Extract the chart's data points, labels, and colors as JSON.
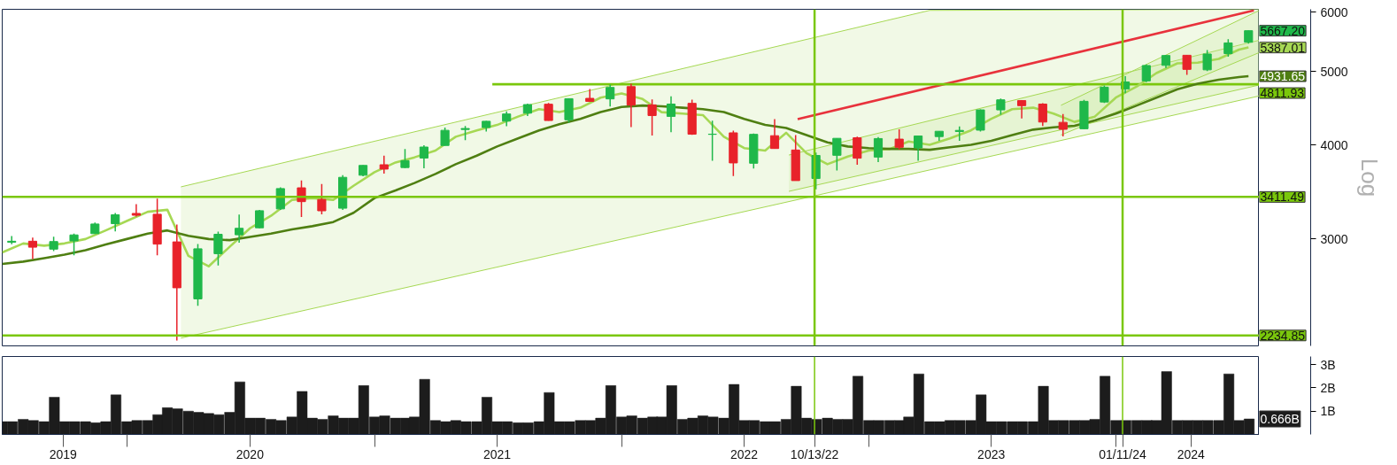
{
  "chart_data": [
    {
      "type": "candlestick",
      "ylabel": "Log",
      "log": true,
      "tick_labels": "y",
      "xlim": [
        "2019-07-01",
        "2024-07-31"
      ],
      "ylim": [
        2165,
        6050
      ],
      "yticks": [
        3000,
        4000,
        5000,
        6000
      ],
      "x": [
        "2019-07-15",
        "2019-08-15",
        "2019-09-15",
        "2019-10-15",
        "2019-11-15",
        "2019-12-15",
        "2020-01-15",
        "2020-02-15",
        "2020-03-15",
        "2020-04-15",
        "2020-05-15",
        "2020-06-15",
        "2020-07-15",
        "2020-08-15",
        "2020-09-15",
        "2020-10-15",
        "2020-11-15",
        "2020-12-15",
        "2021-01-15",
        "2021-02-15",
        "2021-03-15",
        "2021-04-15",
        "2021-05-15",
        "2021-06-15",
        "2021-07-15",
        "2021-08-15",
        "2021-09-15",
        "2021-10-15",
        "2021-11-15",
        "2021-12-15",
        "2022-01-15",
        "2022-02-15",
        "2022-03-15",
        "2022-04-15",
        "2022-05-15",
        "2022-06-15",
        "2022-07-15",
        "2022-08-15",
        "2022-09-15",
        "2022-10-15",
        "2022-11-15",
        "2022-12-15",
        "2023-01-15",
        "2023-02-15",
        "2023-03-15",
        "2023-04-15",
        "2023-05-15",
        "2023-06-15",
        "2023-07-15",
        "2023-08-15",
        "2023-09-15",
        "2023-10-15",
        "2023-11-15",
        "2023-12-15",
        "2024-01-15",
        "2024-02-15",
        "2024-03-15",
        "2024-04-15",
        "2024-05-15",
        "2024-06-15",
        "2024-07-15"
      ],
      "ohlc": [
        [
          2971,
          3028,
          2952,
          2980
        ],
        [
          2980,
          3014,
          2822,
          2926
        ],
        [
          2909,
          3022,
          2892,
          2977
        ],
        [
          2983,
          3050,
          2855,
          3038
        ],
        [
          3050,
          3155,
          3050,
          3141
        ],
        [
          3144,
          3248,
          3070,
          3231
        ],
        [
          3244,
          3338,
          3214,
          3226
        ],
        [
          3236,
          3394,
          2855,
          2954
        ],
        [
          2974,
          3136,
          2200,
          2585
        ],
        [
          2499,
          2955,
          2447,
          2912
        ],
        [
          2869,
          3068,
          2767,
          3044
        ],
        [
          3039,
          3233,
          2966,
          3100
        ],
        [
          3105,
          3280,
          3101,
          3271
        ],
        [
          3289,
          3514,
          3280,
          3500
        ],
        [
          3508,
          3588,
          3209,
          3363
        ],
        [
          3385,
          3550,
          3234,
          3270
        ],
        [
          3296,
          3646,
          3280,
          3622
        ],
        [
          3645,
          3760,
          3633,
          3756
        ],
        [
          3764,
          3870,
          3663,
          3714
        ],
        [
          3732,
          3950,
          3725,
          3811
        ],
        [
          3842,
          3994,
          3723,
          3973
        ],
        [
          3992,
          4218,
          3992,
          4181
        ],
        [
          4192,
          4238,
          4056,
          4204
        ],
        [
          4217,
          4302,
          4165,
          4298
        ],
        [
          4300,
          4429,
          4233,
          4395
        ],
        [
          4406,
          4537,
          4367,
          4523
        ],
        [
          4528,
          4546,
          4306,
          4308
        ],
        [
          4317,
          4608,
          4279,
          4605
        ],
        [
          4610,
          4744,
          4560,
          4567
        ],
        [
          4602,
          4808,
          4495,
          4766
        ],
        [
          4778,
          4819,
          4223,
          4516
        ],
        [
          4519,
          4596,
          4115,
          4374
        ],
        [
          4363,
          4637,
          4157,
          4530
        ],
        [
          4540,
          4593,
          4124,
          4132
        ],
        [
          4130,
          4307,
          3811,
          4132
        ],
        [
          4149,
          4178,
          3637,
          3785
        ],
        [
          3781,
          4140,
          3721,
          4130
        ],
        [
          4113,
          4325,
          3955,
          3955
        ],
        [
          3937,
          4120,
          3585,
          3586
        ],
        [
          3609,
          3906,
          3492,
          3872
        ],
        [
          3874,
          4080,
          3699,
          4080
        ],
        [
          4087,
          4101,
          3764,
          3840
        ],
        [
          3853,
          4095,
          3795,
          4077
        ],
        [
          4070,
          4195,
          3944,
          3970
        ],
        [
          3963,
          4111,
          3809,
          4109
        ],
        [
          4102,
          4170,
          4049,
          4169
        ],
        [
          4166,
          4231,
          4048,
          4180
        ],
        [
          4183,
          4458,
          4166,
          4450
        ],
        [
          4450,
          4608,
          4385,
          4589
        ],
        [
          4578,
          4584,
          4335,
          4508
        ],
        [
          4530,
          4541,
          4238,
          4288
        ],
        [
          4284,
          4394,
          4104,
          4194
        ],
        [
          4201,
          4587,
          4197,
          4568
        ],
        [
          4559,
          4794,
          4546,
          4770
        ],
        [
          4745,
          4932,
          4683,
          4846
        ],
        [
          4862,
          5111,
          4845,
          5096
        ],
        [
          5098,
          5265,
          5057,
          5254
        ],
        [
          5258,
          5264,
          4954,
          5036
        ],
        [
          5029,
          5342,
          5011,
          5278
        ],
        [
          5284,
          5523,
          5234,
          5460
        ],
        [
          5471,
          5670,
          5448,
          5667.2
        ]
      ],
      "colors": [
        "#1fb84a",
        "#e8222a",
        "#1fb84a",
        "#1fb84a",
        "#1fb84a",
        "#1fb84a",
        "#e8222a",
        "#e8222a",
        "#e8222a",
        "#1fb84a",
        "#1fb84a",
        "#1fb84a",
        "#1fb84a",
        "#1fb84a",
        "#e8222a",
        "#e8222a",
        "#1fb84a",
        "#1fb84a",
        "#e8222a",
        "#1fb84a",
        "#1fb84a",
        "#1fb84a",
        "#1fb84a",
        "#1fb84a",
        "#1fb84a",
        "#1fb84a",
        "#e8222a",
        "#1fb84a",
        "#e8222a",
        "#1fb84a",
        "#e8222a",
        "#e8222a",
        "#1fb84a",
        "#e8222a",
        "#1fb84a",
        "#e8222a",
        "#1fb84a",
        "#e8222a",
        "#e8222a",
        "#1fb84a",
        "#1fb84a",
        "#e8222a",
        "#1fb84a",
        "#e8222a",
        "#1fb84a",
        "#1fb84a",
        "#1fb84a",
        "#1fb84a",
        "#1fb84a",
        "#e8222a",
        "#e8222a",
        "#e8222a",
        "#1fb84a",
        "#1fb84a",
        "#1fb84a",
        "#1fb84a",
        "#1fb84a",
        "#e8222a",
        "#1fb84a",
        "#1fb84a",
        "#1fb84a"
      ],
      "series": [
        {
          "type": "line",
          "color": "#a6d854",
          "x": [
            "2020-03-21",
            "2023-04-01",
            "2024-07-31"
          ],
          "values": [
            3518,
            6030,
            6050
          ],
          "lower": [
            2217,
            3704,
            4644
          ],
          "upper": [
            3518,
            6030,
            6050
          ]
        },
        {
          "type": "line",
          "color": "#a6d854",
          "x": [
            "2020-03-21",
            "2024-07-31"
          ],
          "values": [
            2217,
            4644
          ]
        },
        {
          "type": "line",
          "color": "#a6d854",
          "x": [
            "2022-09-05",
            "2024-07-31"
          ],
          "values": [
            3877,
            5505
          ],
          "lower": [
            3470,
            4802
          ],
          "upper": [
            3877,
            5505
          ]
        },
        {
          "type": "line",
          "color": "#a6d854",
          "x": [
            "2022-09-05",
            "2024-07-31"
          ],
          "values": [
            3470,
            4802
          ]
        },
        {
          "type": "line",
          "color": "#a6d854",
          "x": [
            "2023-10-12",
            "2024-07-31"
          ],
          "values": [
            4513,
            6030
          ],
          "lower": [
            4121,
            5302
          ],
          "upper": [
            4513,
            6030
          ]
        },
        {
          "type": "line",
          "color": "#a6d854",
          "x": [
            "2023-10-12",
            "2024-07-31"
          ],
          "values": [
            4121,
            5302
          ]
        },
        {
          "type": "line",
          "color": "#e8323c",
          "x": [
            "2022-09-18",
            "2024-07-23"
          ],
          "values": [
            4326,
            6030
          ]
        },
        {
          "type": "line",
          "color": "#7ac70c",
          "x": [
            "2021-06-24",
            "2024-07-31"
          ],
          "values": [
            4811.93,
            4811.93
          ],
          "value_labels": [
            null,
            "4811.93"
          ]
        },
        {
          "type": "line",
          "color": "#a6d854",
          "x": [
            "2019-07-01",
            "2019-08-01",
            "2019-09-01",
            "2019-10-01",
            "2019-11-01",
            "2019-12-01",
            "2020-01-01",
            "2020-02-01",
            "2020-03-01",
            "2020-04-01",
            "2020-05-01",
            "2020-06-01",
            "2020-07-01",
            "2020-08-01",
            "2020-09-01",
            "2020-10-01",
            "2020-11-01",
            "2020-12-01",
            "2021-01-01",
            "2021-02-01",
            "2021-03-01",
            "2021-04-01",
            "2021-05-01",
            "2021-06-01",
            "2021-07-01",
            "2021-08-01",
            "2021-09-01",
            "2021-10-01",
            "2021-11-01",
            "2021-12-01",
            "2022-01-01",
            "2022-02-01",
            "2022-03-01",
            "2022-04-01",
            "2022-05-01",
            "2022-06-01",
            "2022-07-01",
            "2022-08-01",
            "2022-09-01",
            "2022-10-01",
            "2022-11-01",
            "2022-12-01",
            "2023-01-01",
            "2023-02-01",
            "2023-03-01",
            "2023-04-01",
            "2023-05-01",
            "2023-06-01",
            "2023-07-01",
            "2023-08-01",
            "2023-09-01",
            "2023-10-01",
            "2023-11-01",
            "2023-12-01",
            "2024-01-01",
            "2024-02-01",
            "2024-03-01",
            "2024-04-01",
            "2024-05-01",
            "2024-06-01",
            "2024-07-01",
            "2024-07-15"
          ],
          "values": [
            2880,
            2960,
            2940,
            2960,
            3000,
            3080,
            3170,
            3260,
            3280,
            2850,
            2760,
            2930,
            3100,
            3220,
            3380,
            3400,
            3380,
            3530,
            3680,
            3790,
            3850,
            3930,
            4100,
            4180,
            4250,
            4360,
            4460,
            4420,
            4480,
            4620,
            4680,
            4600,
            4420,
            4400,
            4380,
            4100,
            3960,
            3930,
            4150,
            3900,
            3770,
            3860,
            3930,
            3950,
            4040,
            4000,
            4080,
            4180,
            4330,
            4460,
            4480,
            4400,
            4290,
            4360,
            4620,
            4780,
            4980,
            5130,
            5140,
            5200,
            5350,
            5387.01
          ],
          "value_labels": [
            null,
            null,
            null,
            null,
            null,
            null,
            null,
            null,
            null,
            null,
            null,
            null,
            null,
            null,
            null,
            null,
            null,
            null,
            null,
            null,
            null,
            null,
            null,
            null,
            null,
            null,
            null,
            null,
            null,
            null,
            null,
            null,
            null,
            null,
            null,
            null,
            null,
            null,
            null,
            null,
            null,
            null,
            null,
            null,
            null,
            null,
            null,
            null,
            null,
            null,
            null,
            null,
            null,
            null,
            null,
            null,
            null,
            null,
            null,
            null,
            null,
            "5387.01"
          ]
        },
        {
          "type": "line",
          "color": "#4f7f12",
          "x": [
            "2019-07-01",
            "2019-08-01",
            "2019-09-01",
            "2019-10-01",
            "2019-11-01",
            "2019-12-01",
            "2020-01-01",
            "2020-02-01",
            "2020-03-01",
            "2020-04-01",
            "2020-05-01",
            "2020-06-01",
            "2020-07-01",
            "2020-08-01",
            "2020-09-01",
            "2020-10-01",
            "2020-11-01",
            "2020-12-01",
            "2021-01-01",
            "2021-02-01",
            "2021-03-01",
            "2021-04-01",
            "2021-05-01",
            "2021-06-01",
            "2021-07-01",
            "2021-08-01",
            "2021-09-01",
            "2021-10-01",
            "2021-11-01",
            "2021-12-01",
            "2022-01-01",
            "2022-02-01",
            "2022-03-01",
            "2022-04-01",
            "2022-05-01",
            "2022-06-01",
            "2022-07-01",
            "2022-08-01",
            "2022-09-01",
            "2022-10-01",
            "2022-11-01",
            "2022-12-01",
            "2023-01-01",
            "2023-02-01",
            "2023-03-01",
            "2023-04-01",
            "2023-05-01",
            "2023-06-01",
            "2023-07-01",
            "2023-08-01",
            "2023-09-01",
            "2023-10-01",
            "2023-11-01",
            "2023-12-01",
            "2024-01-01",
            "2024-02-01",
            "2024-03-01",
            "2024-04-01",
            "2024-05-01",
            "2024-06-01",
            "2024-07-01",
            "2024-07-15"
          ],
          "values": [
            2780,
            2800,
            2830,
            2860,
            2900,
            2950,
            3000,
            3050,
            3080,
            3030,
            3000,
            2990,
            3020,
            3050,
            3090,
            3120,
            3160,
            3250,
            3400,
            3480,
            3560,
            3660,
            3770,
            3870,
            3980,
            4080,
            4180,
            4260,
            4330,
            4420,
            4490,
            4510,
            4500,
            4480,
            4460,
            4420,
            4330,
            4250,
            4210,
            4120,
            4030,
            3980,
            3960,
            3950,
            3950,
            3940,
            3970,
            4000,
            4050,
            4120,
            4190,
            4220,
            4240,
            4310,
            4400,
            4510,
            4620,
            4740,
            4820,
            4880,
            4920,
            4931.65
          ],
          "value_labels": [
            null,
            null,
            null,
            null,
            null,
            null,
            null,
            null,
            null,
            null,
            null,
            null,
            null,
            null,
            null,
            null,
            null,
            null,
            null,
            null,
            null,
            null,
            null,
            null,
            null,
            null,
            null,
            null,
            null,
            null,
            null,
            null,
            null,
            null,
            null,
            null,
            null,
            null,
            null,
            null,
            null,
            null,
            null,
            null,
            null,
            null,
            null,
            null,
            null,
            null,
            null,
            null,
            null,
            null,
            null,
            null,
            null,
            null,
            null,
            null,
            null,
            "4931.65"
          ]
        }
      ],
      "ref_lines": [
        {
          "axis": "y",
          "value": 3411.49,
          "label": "3411.49",
          "color": "#7ac70c"
        },
        {
          "axis": "y",
          "value": 2234.85,
          "label": "2234.85",
          "color": "#7ac70c"
        },
        {
          "axis": "x",
          "value": "2022-10-13",
          "label": null,
          "color": "#7ac70c"
        },
        {
          "axis": "x",
          "value": "2024-01-11",
          "label": null,
          "color": "#7ac70c"
        }
      ],
      "annotations": [
        "5667.20"
      ]
    },
    {
      "type": "bar",
      "color": "#1c1c1c",
      "xlim": [
        "2019-07-01",
        "2024-07-31"
      ],
      "ylim": [
        0,
        3.35
      ],
      "yticks": [
        {
          "value": 1,
          "label": "1B"
        },
        {
          "value": 2,
          "label": "2B"
        },
        {
          "value": 3,
          "label": "3B"
        }
      ],
      "xticks": [
        {
          "value": "2020-01-01",
          "label": null
        },
        {
          "value": "2021-01-01",
          "label": null
        },
        {
          "value": "2022-01-01",
          "label": null
        },
        {
          "value": "2023-01-01",
          "label": null
        },
        {
          "value": "2024-01-01",
          "label": null
        },
        {
          "value": "2019-09-29",
          "label": "2019"
        },
        {
          "value": "2020-07-01",
          "label": "2020"
        },
        {
          "value": "2021-07-01",
          "label": "2021"
        },
        {
          "value": "2022-07-01",
          "label": "2022"
        },
        {
          "value": "2023-07-01",
          "label": "2023"
        },
        {
          "value": "2024-04-21",
          "label": "2024"
        }
      ],
      "x": [
        "2019-07-01",
        "2019-07-16",
        "2019-08-01",
        "2019-08-16",
        "2019-09-01",
        "2019-09-16",
        "2019-10-01",
        "2019-10-16",
        "2019-11-01",
        "2019-11-16",
        "2019-12-01",
        "2019-12-16",
        "2020-01-01",
        "2020-01-16",
        "2020-02-01",
        "2020-02-16",
        "2020-03-01",
        "2020-03-16",
        "2020-04-01",
        "2020-04-16",
        "2020-05-01",
        "2020-05-16",
        "2020-06-01",
        "2020-06-16",
        "2020-07-01",
        "2020-07-16",
        "2020-08-01",
        "2020-08-16",
        "2020-09-01",
        "2020-09-16",
        "2020-10-01",
        "2020-10-16",
        "2020-11-01",
        "2020-11-16",
        "2020-12-01",
        "2020-12-16",
        "2021-01-01",
        "2021-01-16",
        "2021-02-01",
        "2021-02-16",
        "2021-03-01",
        "2021-03-16",
        "2021-04-01",
        "2021-04-16",
        "2021-05-01",
        "2021-05-16",
        "2021-06-01",
        "2021-06-16",
        "2021-07-01",
        "2021-07-16",
        "2021-08-01",
        "2021-08-16",
        "2021-09-01",
        "2021-09-16",
        "2021-10-01",
        "2021-10-16",
        "2021-11-01",
        "2021-11-16",
        "2021-12-01",
        "2021-12-16",
        "2022-01-01",
        "2022-01-16",
        "2022-02-01",
        "2022-02-16",
        "2022-03-01",
        "2022-03-16",
        "2022-04-01",
        "2022-04-16",
        "2022-05-01",
        "2022-05-16",
        "2022-06-01",
        "2022-06-16",
        "2022-07-01",
        "2022-07-16",
        "2022-08-01",
        "2022-08-16",
        "2022-09-01",
        "2022-09-16",
        "2022-10-01",
        "2022-10-16",
        "2022-11-01",
        "2022-11-16",
        "2022-12-01",
        "2022-12-16",
        "2023-01-01",
        "2023-01-16",
        "2023-02-01",
        "2023-02-16",
        "2023-03-01",
        "2023-03-16",
        "2023-04-01",
        "2023-04-16",
        "2023-05-01",
        "2023-05-16",
        "2023-06-01",
        "2023-06-16",
        "2023-07-01",
        "2023-07-16",
        "2023-08-01",
        "2023-08-16",
        "2023-09-01",
        "2023-09-16",
        "2023-10-01",
        "2023-10-16",
        "2023-11-01",
        "2023-11-16",
        "2023-12-01",
        "2023-12-16",
        "2024-01-01",
        "2024-01-16",
        "2024-02-01",
        "2024-02-16",
        "2024-03-01",
        "2024-03-16",
        "2024-04-01",
        "2024-04-16",
        "2024-05-01",
        "2024-05-16",
        "2024-06-01",
        "2024-06-16",
        "2024-07-01",
        "2024-07-16"
      ],
      "values": [
        0.55,
        0.55,
        0.65,
        0.6,
        0.55,
        1.6,
        0.55,
        0.55,
        0.55,
        0.5,
        0.55,
        1.7,
        0.55,
        0.6,
        0.6,
        0.85,
        1.15,
        1.1,
        1.0,
        0.95,
        0.9,
        0.85,
        0.95,
        2.26,
        0.7,
        0.7,
        0.65,
        0.6,
        0.75,
        1.85,
        0.7,
        0.65,
        0.8,
        0.7,
        0.7,
        2.1,
        0.75,
        0.8,
        0.7,
        0.7,
        0.75,
        2.37,
        0.6,
        0.55,
        0.6,
        0.55,
        0.55,
        1.6,
        0.55,
        0.55,
        0.5,
        0.5,
        0.55,
        1.8,
        0.55,
        0.55,
        0.6,
        0.6,
        0.7,
        2.1,
        0.75,
        0.8,
        0.7,
        0.75,
        0.75,
        2.1,
        0.65,
        0.7,
        0.8,
        0.75,
        0.7,
        2.15,
        0.6,
        0.6,
        0.55,
        0.55,
        0.65,
        2.07,
        0.7,
        0.65,
        0.7,
        0.65,
        0.65,
        2.5,
        0.6,
        0.6,
        0.6,
        0.6,
        0.75,
        2.6,
        0.55,
        0.55,
        0.6,
        0.6,
        0.6,
        1.7,
        0.55,
        0.55,
        0.55,
        0.55,
        0.55,
        2.07,
        0.6,
        0.6,
        0.6,
        0.6,
        0.65,
        2.5,
        0.6,
        0.6,
        0.6,
        0.6,
        0.6,
        2.7,
        0.6,
        0.6,
        0.6,
        0.6,
        0.6,
        2.6,
        0.6,
        0.666
      ],
      "ref_lines": [
        {
          "axis": "x",
          "value": "2022-10-13",
          "label": "10/13/22",
          "color": "#7ac70c"
        },
        {
          "axis": "x",
          "value": "2024-01-11",
          "label": "01/11/24",
          "color": "#7ac70c"
        }
      ],
      "annotations": [
        "0.666B"
      ]
    }
  ]
}
